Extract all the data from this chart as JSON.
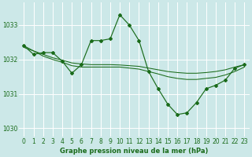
{
  "bg": "#cce8e8",
  "lc": "#1a6b1a",
  "title": "Graphe pression niveau de la mer (hPa)",
  "xlim": [
    -0.5,
    23.5
  ],
  "ylim": [
    1029.75,
    1033.65
  ],
  "yticks": [
    1030,
    1031,
    1032,
    1033
  ],
  "xticks": [
    0,
    1,
    2,
    3,
    4,
    5,
    6,
    7,
    8,
    9,
    10,
    11,
    12,
    13,
    14,
    15,
    16,
    17,
    18,
    19,
    20,
    21,
    22,
    23
  ],
  "line_main_x": [
    0,
    1,
    2,
    3,
    4,
    5,
    6,
    7,
    8,
    9,
    10,
    11,
    12,
    13,
    14,
    15,
    16,
    17,
    18,
    19,
    20,
    21,
    22,
    23
  ],
  "line_main_y": [
    1032.4,
    1032.15,
    1032.2,
    1032.2,
    1031.95,
    1031.6,
    1031.85,
    1032.55,
    1032.55,
    1032.6,
    1033.3,
    1033.0,
    1032.55,
    1031.65,
    1031.15,
    1030.7,
    1030.4,
    1030.45,
    1030.75,
    1031.15,
    1031.25,
    1031.4,
    1031.75,
    1031.85
  ],
  "line_flat1_x": [
    0,
    1,
    2,
    3,
    4,
    5,
    6,
    7,
    8,
    9,
    10,
    11,
    12,
    13,
    14,
    15,
    16,
    17,
    18,
    19,
    20,
    21,
    22,
    23
  ],
  "line_flat1_y": [
    1032.35,
    1032.25,
    1032.15,
    1032.05,
    1031.98,
    1031.9,
    1031.87,
    1031.85,
    1031.85,
    1031.85,
    1031.84,
    1031.82,
    1031.8,
    1031.75,
    1031.7,
    1031.65,
    1031.62,
    1031.6,
    1031.6,
    1031.62,
    1031.65,
    1031.7,
    1031.78,
    1031.85
  ],
  "line_flat2_x": [
    0,
    1,
    2,
    3,
    4,
    5,
    6,
    7,
    8,
    9,
    10,
    11,
    12,
    13,
    14,
    15,
    16,
    17,
    18,
    19,
    20,
    21,
    22,
    23
  ],
  "line_flat2_y": [
    1032.4,
    1032.25,
    1032.1,
    1032.0,
    1031.92,
    1031.82,
    1031.78,
    1031.78,
    1031.78,
    1031.78,
    1031.78,
    1031.75,
    1031.72,
    1031.65,
    1031.58,
    1031.5,
    1031.45,
    1031.42,
    1031.42,
    1031.45,
    1031.48,
    1031.55,
    1031.65,
    1031.78
  ]
}
